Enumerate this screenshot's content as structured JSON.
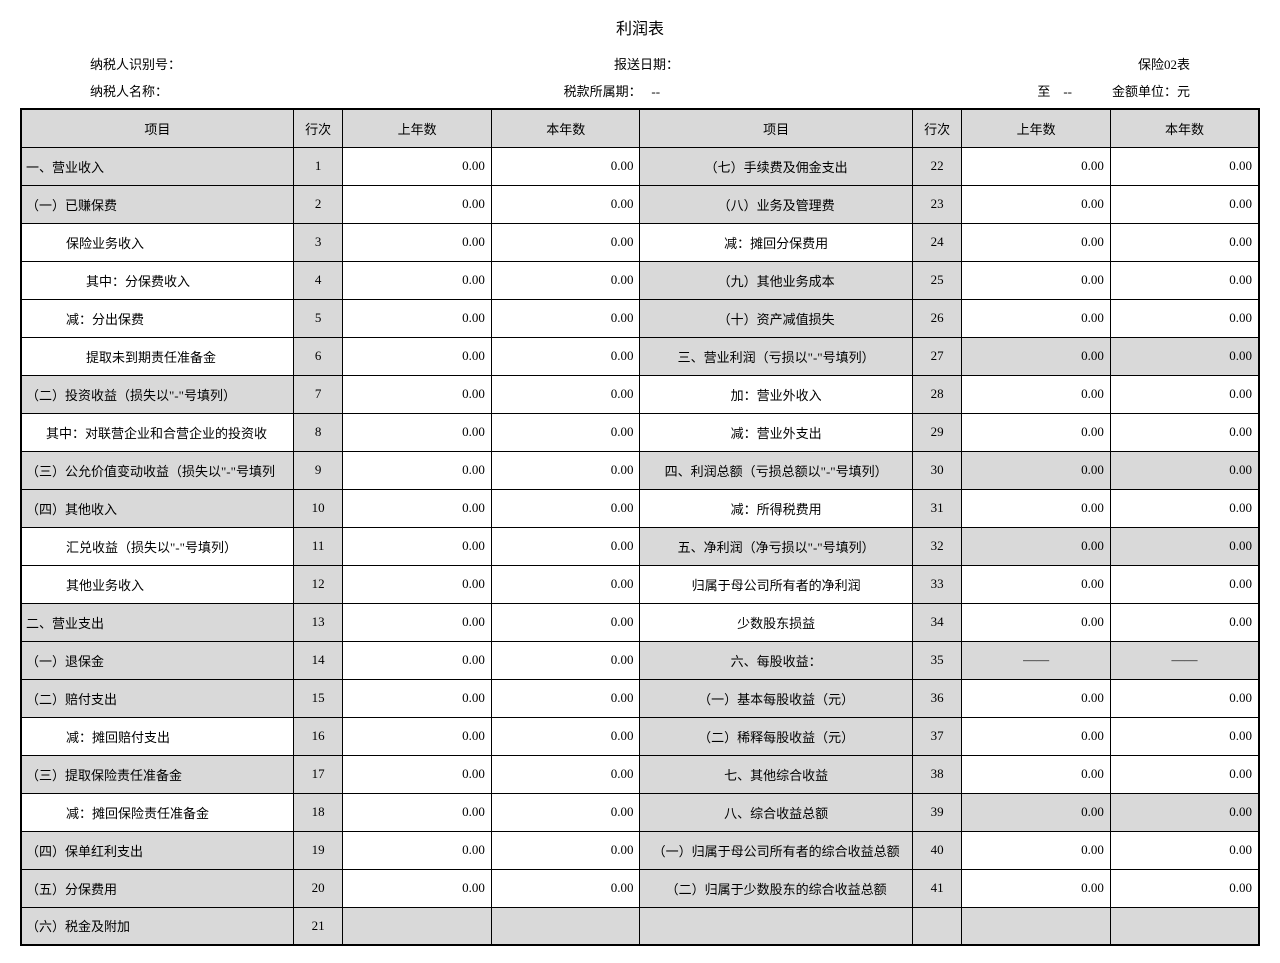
{
  "title": "利润表",
  "meta": {
    "taxpayer_id_label": "纳税人识别号：",
    "report_date_label": "报送日期：",
    "form_no": "保险02表",
    "taxpayer_name_label": "纳税人名称：",
    "tax_period_label": "税款所属期：",
    "period_from": "--",
    "to_label": "至",
    "period_to": "--",
    "currency_label": "金额单位：元"
  },
  "headers": {
    "item": "项目",
    "line": "行次",
    "prev": "上年数",
    "curr": "本年数"
  },
  "left": [
    {
      "label": "一、营业收入",
      "line": "1",
      "prev": "0.00",
      "curr": "0.00",
      "indent": 0,
      "gray": true,
      "center": false
    },
    {
      "label": "（一）已赚保费",
      "line": "2",
      "prev": "0.00",
      "curr": "0.00",
      "indent": 0,
      "gray": true,
      "center": false
    },
    {
      "label": "保险业务收入",
      "line": "3",
      "prev": "0.00",
      "curr": "0.00",
      "indent": 2,
      "gray": false,
      "center": false
    },
    {
      "label": "其中：分保费收入",
      "line": "4",
      "prev": "0.00",
      "curr": "0.00",
      "indent": 3,
      "gray": false,
      "center": false
    },
    {
      "label": "减：分出保费",
      "line": "5",
      "prev": "0.00",
      "curr": "0.00",
      "indent": 2,
      "gray": false,
      "center": false
    },
    {
      "label": "提取未到期责任准备金",
      "line": "6",
      "prev": "0.00",
      "curr": "0.00",
      "indent": 3,
      "gray": false,
      "center": false
    },
    {
      "label": "（二）投资收益（损失以\"-\"号填列）",
      "line": "7",
      "prev": "0.00",
      "curr": "0.00",
      "indent": 0,
      "gray": true,
      "center": false
    },
    {
      "label": "其中：对联营企业和合营企业的投资收",
      "line": "8",
      "prev": "0.00",
      "curr": "0.00",
      "indent": 1,
      "gray": false,
      "center": false
    },
    {
      "label": "（三）公允价值变动收益（损失以\"-\"号填列",
      "line": "9",
      "prev": "0.00",
      "curr": "0.00",
      "indent": 0,
      "gray": true,
      "center": false
    },
    {
      "label": "（四）其他收入",
      "line": "10",
      "prev": "0.00",
      "curr": "0.00",
      "indent": 0,
      "gray": true,
      "center": false
    },
    {
      "label": "汇兑收益（损失以\"-\"号填列）",
      "line": "11",
      "prev": "0.00",
      "curr": "0.00",
      "indent": 2,
      "gray": false,
      "center": false
    },
    {
      "label": "其他业务收入",
      "line": "12",
      "prev": "0.00",
      "curr": "0.00",
      "indent": 2,
      "gray": false,
      "center": false
    },
    {
      "label": "二、营业支出",
      "line": "13",
      "prev": "0.00",
      "curr": "0.00",
      "indent": 0,
      "gray": true,
      "center": false
    },
    {
      "label": "（一）退保金",
      "line": "14",
      "prev": "0.00",
      "curr": "0.00",
      "indent": 0,
      "gray": true,
      "center": false
    },
    {
      "label": "（二）赔付支出",
      "line": "15",
      "prev": "0.00",
      "curr": "0.00",
      "indent": 0,
      "gray": true,
      "center": false
    },
    {
      "label": "减：摊回赔付支出",
      "line": "16",
      "prev": "0.00",
      "curr": "0.00",
      "indent": 2,
      "gray": false,
      "center": false
    },
    {
      "label": "（三）提取保险责任准备金",
      "line": "17",
      "prev": "0.00",
      "curr": "0.00",
      "indent": 0,
      "gray": true,
      "center": false
    },
    {
      "label": "减：摊回保险责任准备金",
      "line": "18",
      "prev": "0.00",
      "curr": "0.00",
      "indent": 2,
      "gray": false,
      "center": false
    },
    {
      "label": "（四）保单红利支出",
      "line": "19",
      "prev": "0.00",
      "curr": "0.00",
      "indent": 0,
      "gray": true,
      "center": false
    },
    {
      "label": "（五）分保费用",
      "line": "20",
      "prev": "0.00",
      "curr": "0.00",
      "indent": 0,
      "gray": true,
      "center": false
    },
    {
      "label": "（六）税金及附加",
      "line": "21",
      "prev": "",
      "curr": "",
      "indent": 0,
      "gray": true,
      "center": false,
      "emptyGrayValues": true
    }
  ],
  "right": [
    {
      "label": "（七）手续费及佣金支出",
      "line": "22",
      "prev": "0.00",
      "curr": "0.00",
      "gray": true,
      "center": true
    },
    {
      "label": "（八）业务及管理费",
      "line": "23",
      "prev": "0.00",
      "curr": "0.00",
      "gray": true,
      "center": true
    },
    {
      "label": "减：摊回分保费用",
      "line": "24",
      "prev": "0.00",
      "curr": "0.00",
      "gray": false,
      "center": true
    },
    {
      "label": "（九）其他业务成本",
      "line": "25",
      "prev": "0.00",
      "curr": "0.00",
      "gray": true,
      "center": true
    },
    {
      "label": "（十）资产减值损失",
      "line": "26",
      "prev": "0.00",
      "curr": "0.00",
      "gray": true,
      "center": true
    },
    {
      "label": "三、营业利润（亏损以\"-\"号填列）",
      "line": "27",
      "prev": "0.00",
      "curr": "0.00",
      "gray": true,
      "center": true,
      "valGray": true
    },
    {
      "label": "加：营业外收入",
      "line": "28",
      "prev": "0.00",
      "curr": "0.00",
      "gray": false,
      "center": true
    },
    {
      "label": "减：营业外支出",
      "line": "29",
      "prev": "0.00",
      "curr": "0.00",
      "gray": false,
      "center": true
    },
    {
      "label": "四、利润总额（亏损总额以\"-\"号填列）",
      "line": "30",
      "prev": "0.00",
      "curr": "0.00",
      "gray": true,
      "center": true,
      "valGray": true
    },
    {
      "label": "减：所得税费用",
      "line": "31",
      "prev": "0.00",
      "curr": "0.00",
      "gray": false,
      "center": true
    },
    {
      "label": "五、净利润（净亏损以\"-\"号填列）",
      "line": "32",
      "prev": "0.00",
      "curr": "0.00",
      "gray": true,
      "center": true,
      "valGray": true
    },
    {
      "label": "归属于母公司所有者的净利润",
      "line": "33",
      "prev": "0.00",
      "curr": "0.00",
      "gray": false,
      "center": true
    },
    {
      "label": "少数股东损益",
      "line": "34",
      "prev": "0.00",
      "curr": "0.00",
      "gray": false,
      "center": true
    },
    {
      "label": "六、每股收益：",
      "line": "35",
      "prev": "——",
      "curr": "——",
      "gray": true,
      "center": true,
      "dashCenter": true
    },
    {
      "label": "（一）基本每股收益（元）",
      "line": "36",
      "prev": "0.00",
      "curr": "0.00",
      "gray": true,
      "center": true
    },
    {
      "label": "（二）稀释每股收益（元）",
      "line": "37",
      "prev": "0.00",
      "curr": "0.00",
      "gray": true,
      "center": true
    },
    {
      "label": "七、其他综合收益",
      "line": "38",
      "prev": "0.00",
      "curr": "0.00",
      "gray": true,
      "center": true
    },
    {
      "label": "八、综合收益总额",
      "line": "39",
      "prev": "0.00",
      "curr": "0.00",
      "gray": true,
      "center": true,
      "valGray": true
    },
    {
      "label": "（一）归属于母公司所有者的综合收益总额",
      "line": "40",
      "prev": "0.00",
      "curr": "0.00",
      "gray": true,
      "center": true
    },
    {
      "label": "（二）归属于少数股东的综合收益总额",
      "line": "41",
      "prev": "0.00",
      "curr": "0.00",
      "gray": true,
      "center": true
    },
    {
      "label": "",
      "line": "",
      "prev": "",
      "curr": "",
      "empty": true
    }
  ]
}
